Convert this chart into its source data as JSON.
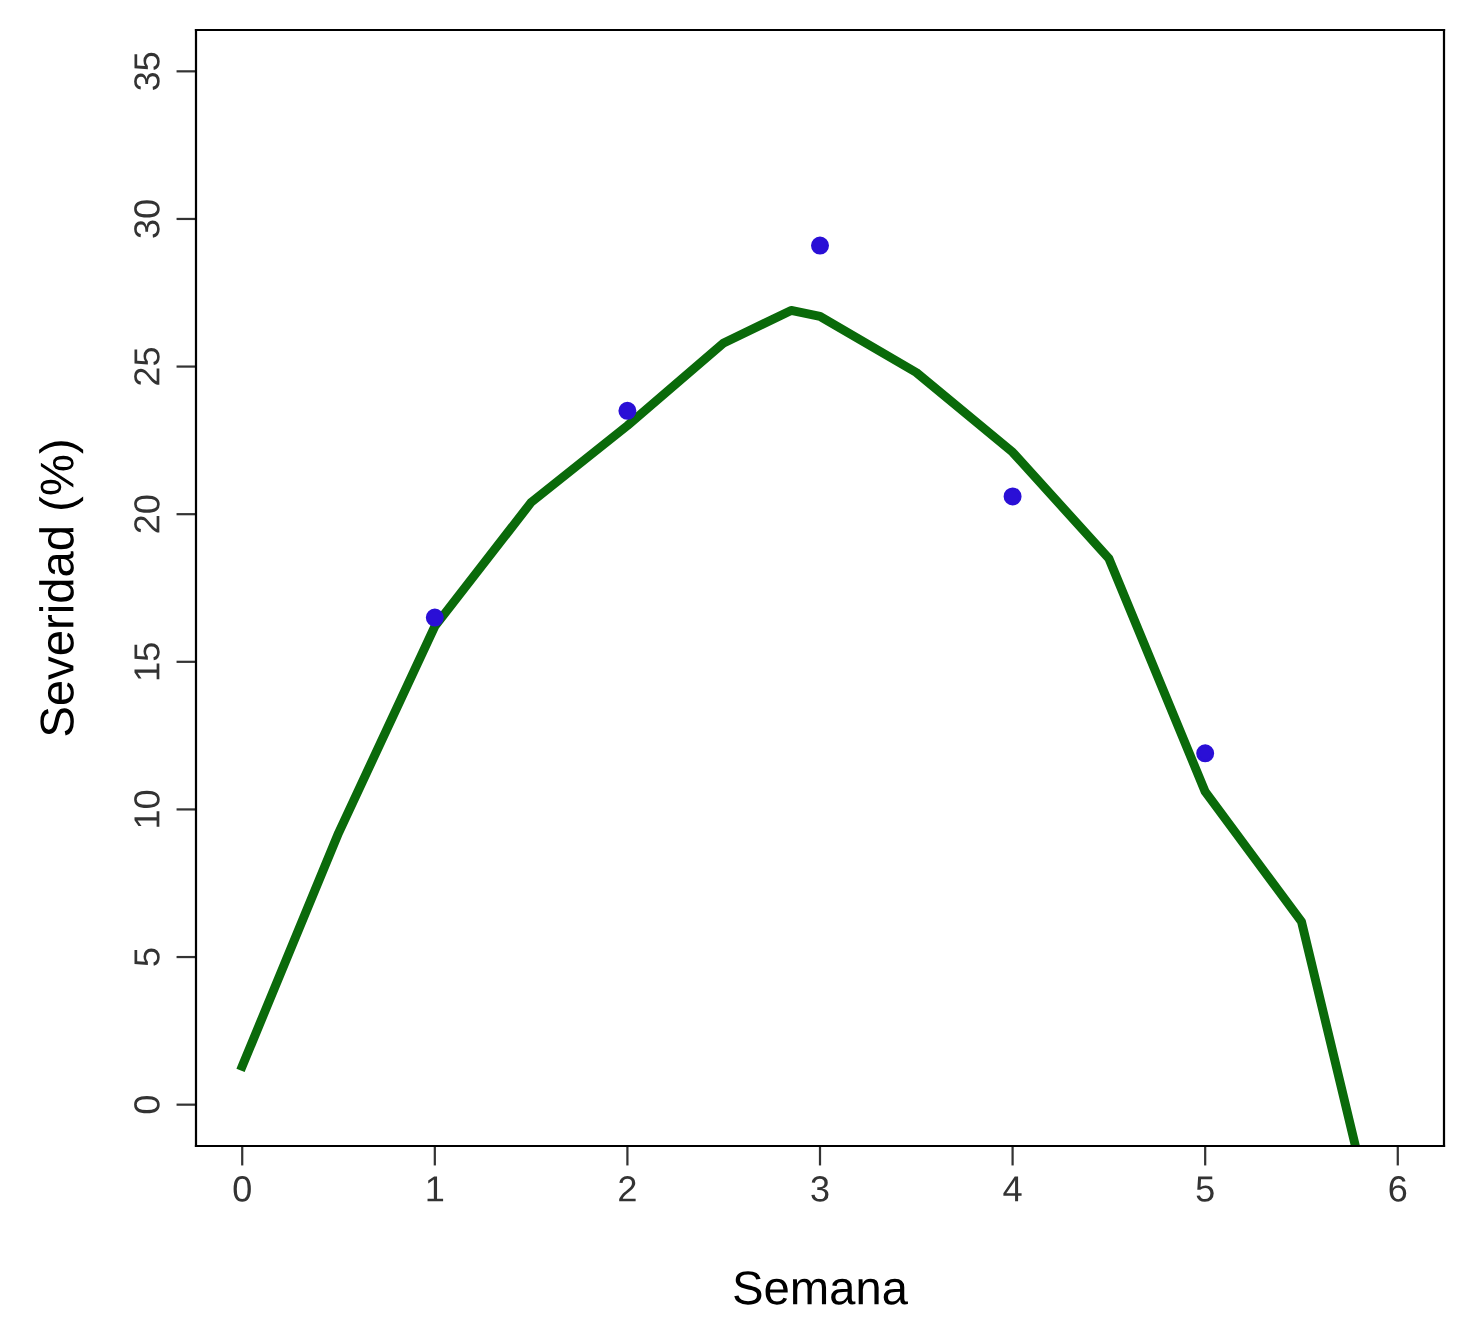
{
  "chart_data": {
    "type": "scatter",
    "xlabel": "Semana",
    "ylabel": "Severidad (%)",
    "xlim": [
      -0.24,
      6.24
    ],
    "ylim": [
      -1.4,
      36.4
    ],
    "xticks": [
      0,
      1,
      2,
      3,
      4,
      5,
      6
    ],
    "yticks": [
      0,
      5,
      10,
      15,
      20,
      25,
      30,
      35
    ],
    "grid": false,
    "legend": false,
    "marker": "circle",
    "series": [
      {
        "color": "#2a0fd6",
        "x": [
          1,
          2,
          3,
          4,
          5
        ],
        "values": [
          16.5,
          23.5,
          29.1,
          20.6,
          11.9
        ]
      },
      {
        "type": "line",
        "color": "#0a6a0a",
        "line_style": "solid",
        "marker": "none",
        "x": [
          0,
          0.5,
          1,
          1.5,
          2,
          2.5,
          2.85,
          3,
          3.5,
          4,
          4.5,
          5,
          5.5,
          5.78
        ],
        "values": [
          1.3,
          9.2,
          16.2,
          20.4,
          23.0,
          25.8,
          26.9,
          26.7,
          24.8,
          22.1,
          18.5,
          10.6,
          6.2,
          -1.4
        ]
      }
    ]
  }
}
